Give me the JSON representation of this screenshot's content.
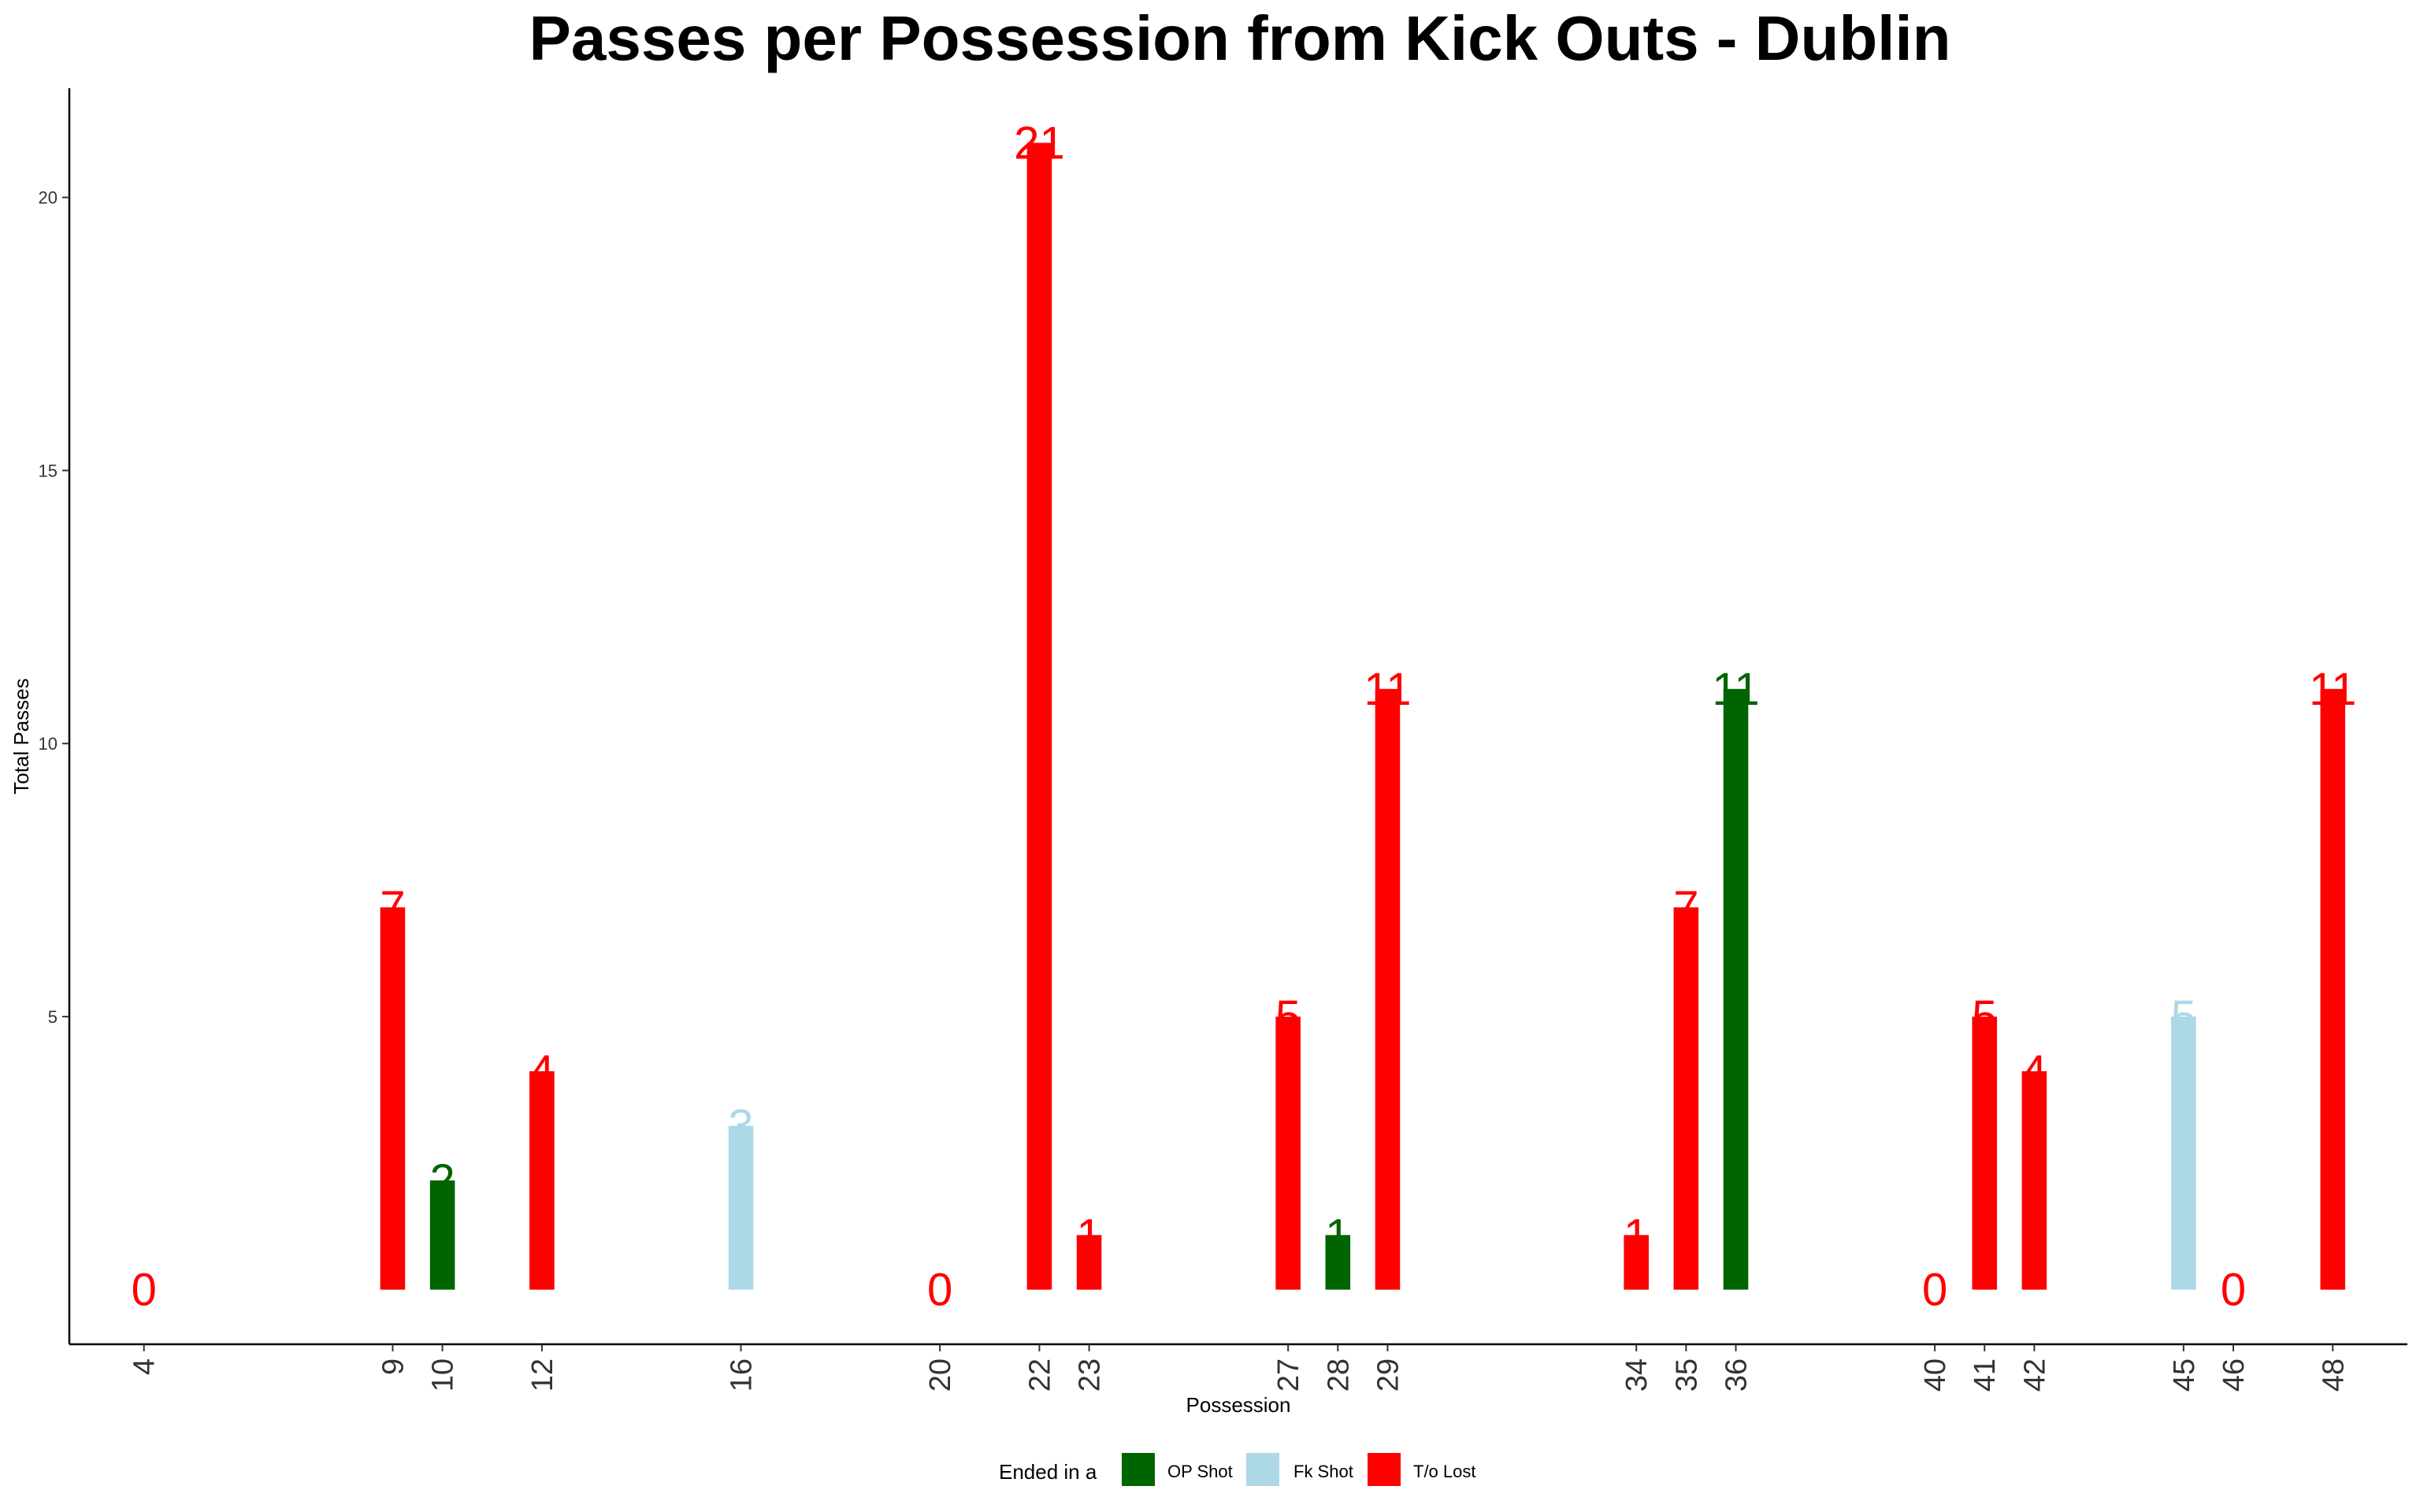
{
  "chart_data": {
    "type": "bar",
    "title": "Passes per Possession from Kick Outs - Dublin",
    "xlabel": "Possession",
    "ylabel": "Total Passes",
    "yticks": [
      5,
      10,
      15,
      20
    ],
    "xlim": [
      2.5,
      49.5
    ],
    "ylim": [
      -1,
      22
    ],
    "grid": false,
    "legend": {
      "title": "Ended in a",
      "placement": "bottom",
      "items": [
        {
          "label": "OP Shot",
          "color": "#006400"
        },
        {
          "label": "Fk Shot",
          "color": "#ADD8E6"
        },
        {
          "label": "T/o Lost",
          "color": "#FF0000"
        }
      ]
    },
    "categories": [
      "4",
      "9",
      "10",
      "12",
      "16",
      "20",
      "22",
      "23",
      "27",
      "28",
      "29",
      "34",
      "35",
      "36",
      "40",
      "41",
      "42",
      "45",
      "46",
      "48"
    ],
    "bars": [
      {
        "x": 4,
        "value": 0,
        "outcome": "T/o Lost"
      },
      {
        "x": 9,
        "value": 7,
        "outcome": "T/o Lost"
      },
      {
        "x": 10,
        "value": 2,
        "outcome": "OP Shot"
      },
      {
        "x": 12,
        "value": 4,
        "outcome": "T/o Lost"
      },
      {
        "x": 16,
        "value": 3,
        "outcome": "Fk Shot"
      },
      {
        "x": 20,
        "value": 0,
        "outcome": "T/o Lost"
      },
      {
        "x": 22,
        "value": 21,
        "outcome": "T/o Lost"
      },
      {
        "x": 23,
        "value": 1,
        "outcome": "T/o Lost"
      },
      {
        "x": 27,
        "value": 5,
        "outcome": "T/o Lost"
      },
      {
        "x": 28,
        "value": 1,
        "outcome": "OP Shot"
      },
      {
        "x": 29,
        "value": 11,
        "outcome": "T/o Lost"
      },
      {
        "x": 34,
        "value": 1,
        "outcome": "T/o Lost"
      },
      {
        "x": 35,
        "value": 7,
        "outcome": "T/o Lost"
      },
      {
        "x": 36,
        "value": 11,
        "outcome": "OP Shot"
      },
      {
        "x": 40,
        "value": 0,
        "outcome": "T/o Lost"
      },
      {
        "x": 41,
        "value": 5,
        "outcome": "T/o Lost"
      },
      {
        "x": 42,
        "value": 4,
        "outcome": "T/o Lost"
      },
      {
        "x": 45,
        "value": 5,
        "outcome": "Fk Shot"
      },
      {
        "x": 46,
        "value": 0,
        "outcome": "T/o Lost"
      },
      {
        "x": 48,
        "value": 11,
        "outcome": "T/o Lost"
      }
    ]
  }
}
